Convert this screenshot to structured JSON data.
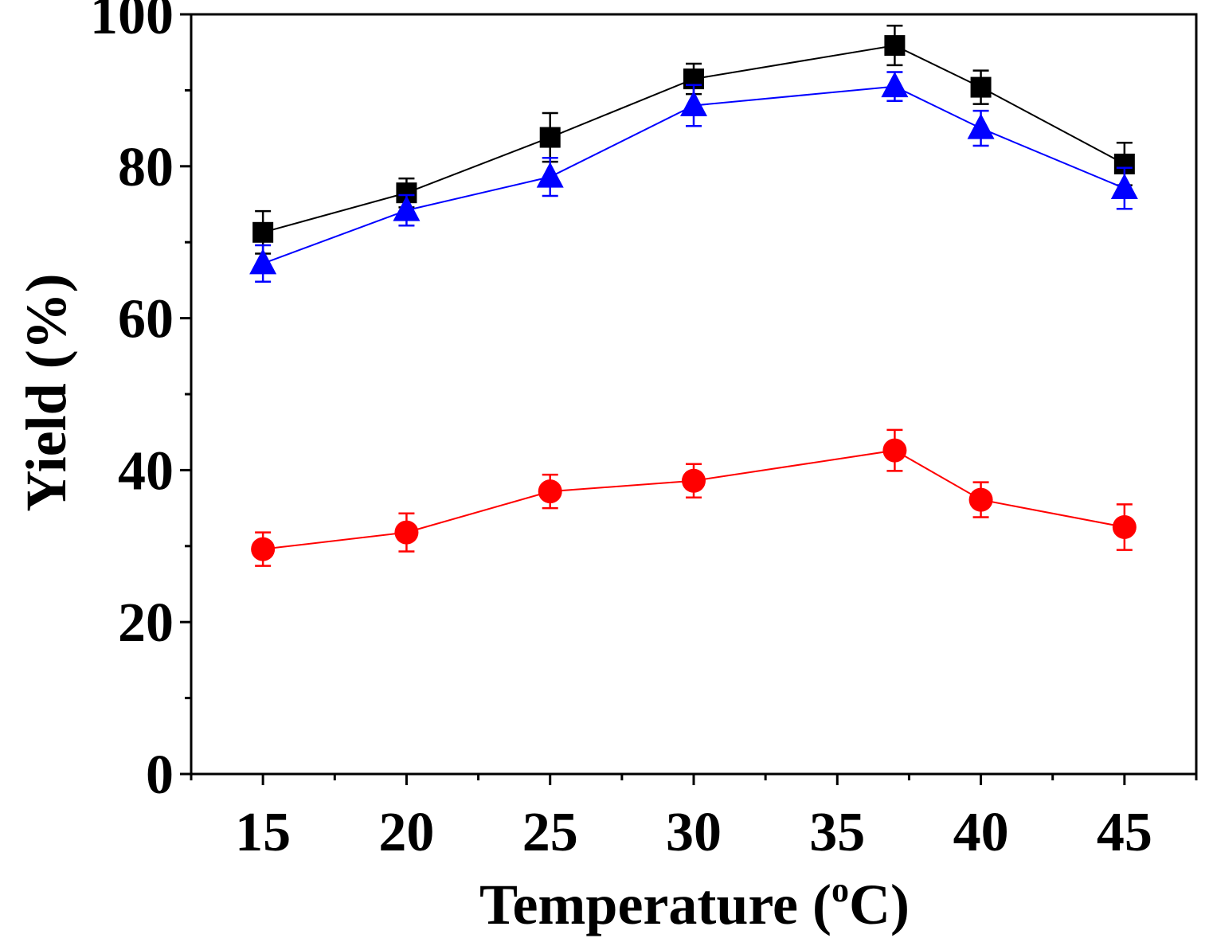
{
  "chart_data": {
    "type": "line",
    "title": "",
    "xlabel_prefix": "Temperature (",
    "xlabel_sup": "o",
    "xlabel_suffix": "C)",
    "ylabel": "Yield (%)",
    "x": [
      15,
      20,
      25,
      30,
      37,
      40,
      45
    ],
    "xlim": [
      12.5,
      47.5
    ],
    "ylim": [
      0,
      100
    ],
    "xticks": [
      15,
      20,
      25,
      30,
      35,
      40,
      45
    ],
    "yticks": [
      0,
      20,
      40,
      60,
      80,
      100
    ],
    "y_minor_step": 10,
    "x_minor_step": 2.5,
    "series": [
      {
        "name": "series-black-square",
        "color": "#000000",
        "marker": "square",
        "values": [
          71.3,
          76.5,
          83.8,
          91.5,
          95.9,
          90.4,
          80.3
        ],
        "errors": [
          2.8,
          1.9,
          3.2,
          2.0,
          2.6,
          2.2,
          2.8
        ]
      },
      {
        "name": "series-blue-triangle",
        "color": "#0000ff",
        "marker": "triangle",
        "values": [
          67.2,
          74.2,
          78.6,
          88.0,
          90.5,
          85.0,
          77.1
        ],
        "errors": [
          2.4,
          2.0,
          2.5,
          2.7,
          1.9,
          2.3,
          2.7
        ]
      },
      {
        "name": "series-red-circle",
        "color": "#ff0000",
        "marker": "circle",
        "values": [
          29.6,
          31.8,
          37.2,
          38.6,
          42.6,
          36.1,
          32.5
        ],
        "errors": [
          2.2,
          2.5,
          2.2,
          2.2,
          2.7,
          2.3,
          3.0
        ]
      }
    ]
  }
}
